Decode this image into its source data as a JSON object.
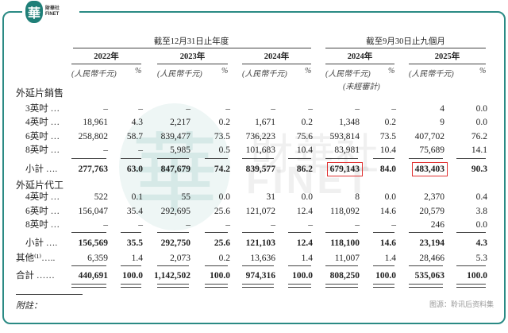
{
  "logo": {
    "cn": "財華社",
    "en": "FINET",
    "glyph": "華"
  },
  "header": {
    "group1": "截至12月31日止年度",
    "group2": "截至9月30日止九個月",
    "years": [
      "2022年",
      "2023年",
      "2024年",
      "2024年",
      "2025年"
    ],
    "unit": "(人民幣千元)",
    "pct": "%",
    "unaudited": "(未經審計)"
  },
  "sections": {
    "sales": "外延片銷售",
    "foundry": "外延片代工"
  },
  "rows": {
    "s3": [
      "3英吋 …",
      "–",
      "–",
      "–",
      "–",
      "–",
      "–",
      "–",
      "–",
      "4",
      "0.0"
    ],
    "s4": [
      "4英吋 …",
      "18,961",
      "4.3",
      "2,217",
      "0.2",
      "1,671",
      "0.2",
      "1,348",
      "0.2",
      "9",
      "0.0"
    ],
    "s6": [
      "6英吋 …",
      "258,802",
      "58.7",
      "839,477",
      "73.5",
      "736,223",
      "75.6",
      "593,814",
      "73.5",
      "407,702",
      "76.2"
    ],
    "s8": [
      "8英吋 …",
      "–",
      "–",
      "5,985",
      "0.5",
      "101,683",
      "10.4",
      "83,981",
      "10.4",
      "75,689",
      "14.1"
    ],
    "ssub": [
      "小計 ….",
      "277,763",
      "63.0",
      "847,679",
      "74.2",
      "839,577",
      "86.2",
      "679,143",
      "84.0",
      "483,403",
      "90.3"
    ],
    "f4": [
      "4英吋 …",
      "522",
      "0.1",
      "55",
      "0.0",
      "31",
      "0.0",
      "8",
      "0.0",
      "2,370",
      "0.4"
    ],
    "f6": [
      "6英吋 …",
      "156,047",
      "35.4",
      "292,695",
      "25.6",
      "121,072",
      "12.4",
      "118,092",
      "14.6",
      "20,579",
      "3.8"
    ],
    "f8": [
      "8英吋 …",
      "–",
      "–",
      "–",
      "–",
      "–",
      "–",
      "–",
      "–",
      "246",
      "0.0"
    ],
    "fsub": [
      "小計 ….",
      "156,569",
      "35.5",
      "292,750",
      "25.6",
      "121,103",
      "12.4",
      "118,100",
      "14.6",
      "23,194",
      "4.3"
    ],
    "other": [
      "其他⁽¹⁾…..",
      "6,359",
      "1.4",
      "2,073",
      "0.2",
      "13,636",
      "1.4",
      "11,007",
      "1.4",
      "28,466",
      "5.3"
    ],
    "total": [
      "合計 ……",
      "440,691",
      "100.0",
      "1,142,502",
      "100.0",
      "974,316",
      "100.0",
      "808,250",
      "100.0",
      "535,063",
      "100.0"
    ]
  },
  "highlight_color": "#e03030",
  "accent_color": "#2a8a84",
  "footnote": "附註：",
  "source": "图源：聆讯后资料集"
}
